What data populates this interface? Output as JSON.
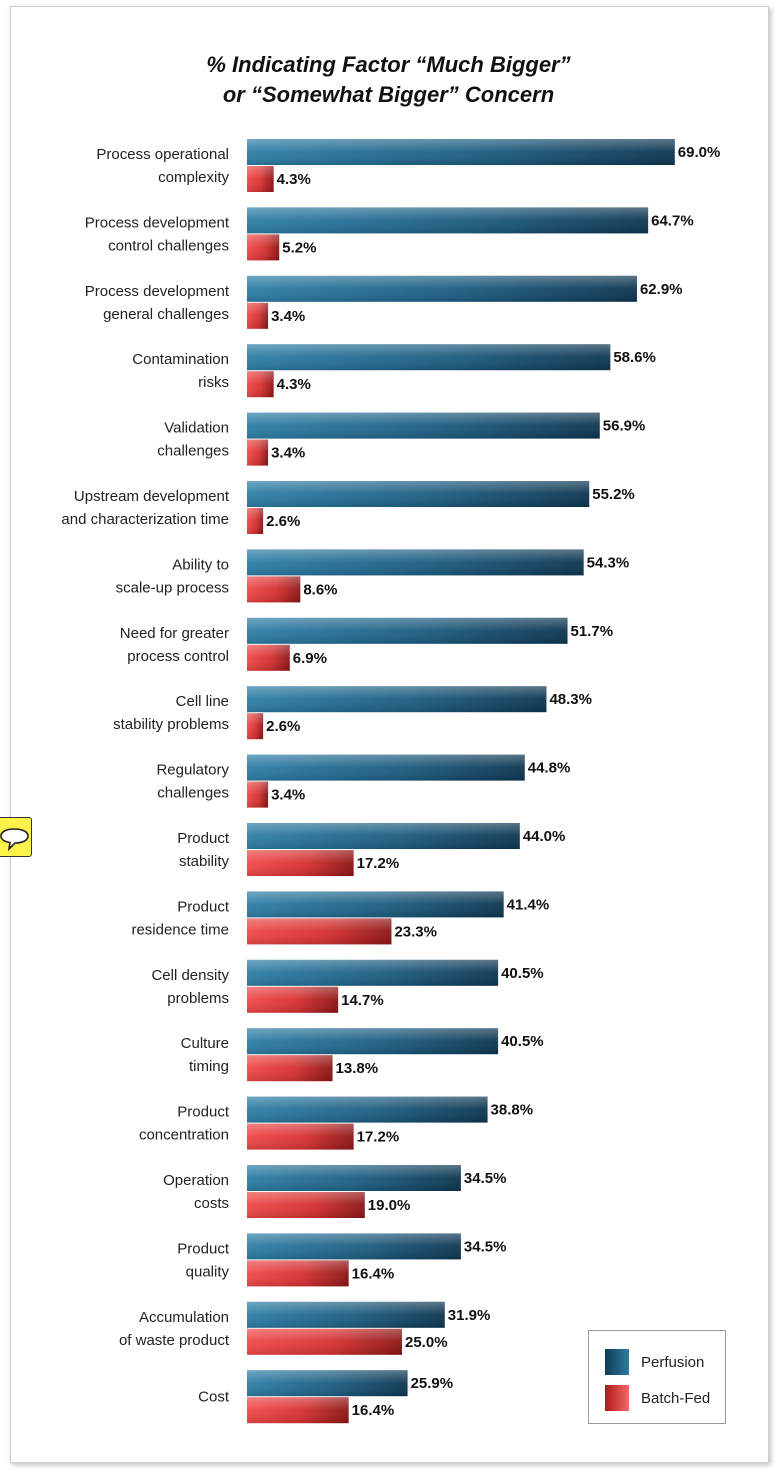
{
  "chart_data": {
    "type": "bar",
    "orientation": "horizontal",
    "title_lines": [
      "% Indicating Factor “Much Bigger”",
      "or “Somewhat Bigger” Concern"
    ],
    "categories": [
      [
        "Process operational",
        "complexity"
      ],
      [
        "Process development",
        "control challenges"
      ],
      [
        "Process development",
        "general challenges"
      ],
      [
        "Contamination",
        "risks"
      ],
      [
        "Validation",
        "challenges"
      ],
      [
        "Upstream development",
        "and characterization time"
      ],
      [
        "Ability to",
        "scale-up process"
      ],
      [
        "Need for greater",
        "process control"
      ],
      [
        "Cell line",
        "stability problems"
      ],
      [
        "Regulatory",
        "challenges"
      ],
      [
        "Product",
        "stability"
      ],
      [
        "Product",
        "residence time"
      ],
      [
        "Cell density",
        "problems"
      ],
      [
        "Culture",
        "timing"
      ],
      [
        "Product",
        "concentration"
      ],
      [
        "Operation",
        "costs"
      ],
      [
        "Product",
        "quality"
      ],
      [
        "Accumulation",
        "of waste product"
      ],
      [
        "Cost"
      ]
    ],
    "series": [
      {
        "name": "Perfusion",
        "color": "#1c5c80",
        "values": [
          69.0,
          64.7,
          62.9,
          58.6,
          56.9,
          55.2,
          54.3,
          51.7,
          48.3,
          44.8,
          44.0,
          41.4,
          40.5,
          40.5,
          38.8,
          34.5,
          34.5,
          31.9,
          25.9
        ],
        "labels": [
          "69.0%",
          "64.7%",
          "62.9%",
          "58.6%",
          "56.9%",
          "55.2%",
          "54.3%",
          "51.7%",
          "48.3%",
          "44.8%",
          "44.0%",
          "41.4%",
          "40.5%",
          "40.5%",
          "38.8%",
          "34.5%",
          "34.5%",
          "31.9%",
          "25.9%"
        ]
      },
      {
        "name": "Batch-Fed",
        "color": "#d93030",
        "values": [
          4.3,
          5.2,
          3.4,
          4.3,
          3.4,
          2.6,
          8.6,
          6.9,
          2.6,
          3.4,
          17.2,
          23.3,
          14.7,
          13.8,
          17.2,
          19.0,
          16.4,
          25.0,
          16.4
        ],
        "labels": [
          "4.3%",
          "5.2%",
          "3.4%",
          "4.3%",
          "3.4%",
          "2.6%",
          "8.6%",
          "6.9%",
          "2.6%",
          "3.4%",
          "17.2%",
          "23.3%",
          "14.7%",
          "13.8%",
          "17.2%",
          "19.0%",
          "16.4%",
          "25.0%",
          "16.4%"
        ]
      }
    ],
    "xlim": [
      0,
      100
    ],
    "grid": false,
    "legend_position": "bottom-right"
  },
  "legend": {
    "perfusion_label": "Perfusion",
    "batchfed_label": "Batch-Fed"
  },
  "icons": {
    "comment": "comment-icon"
  }
}
